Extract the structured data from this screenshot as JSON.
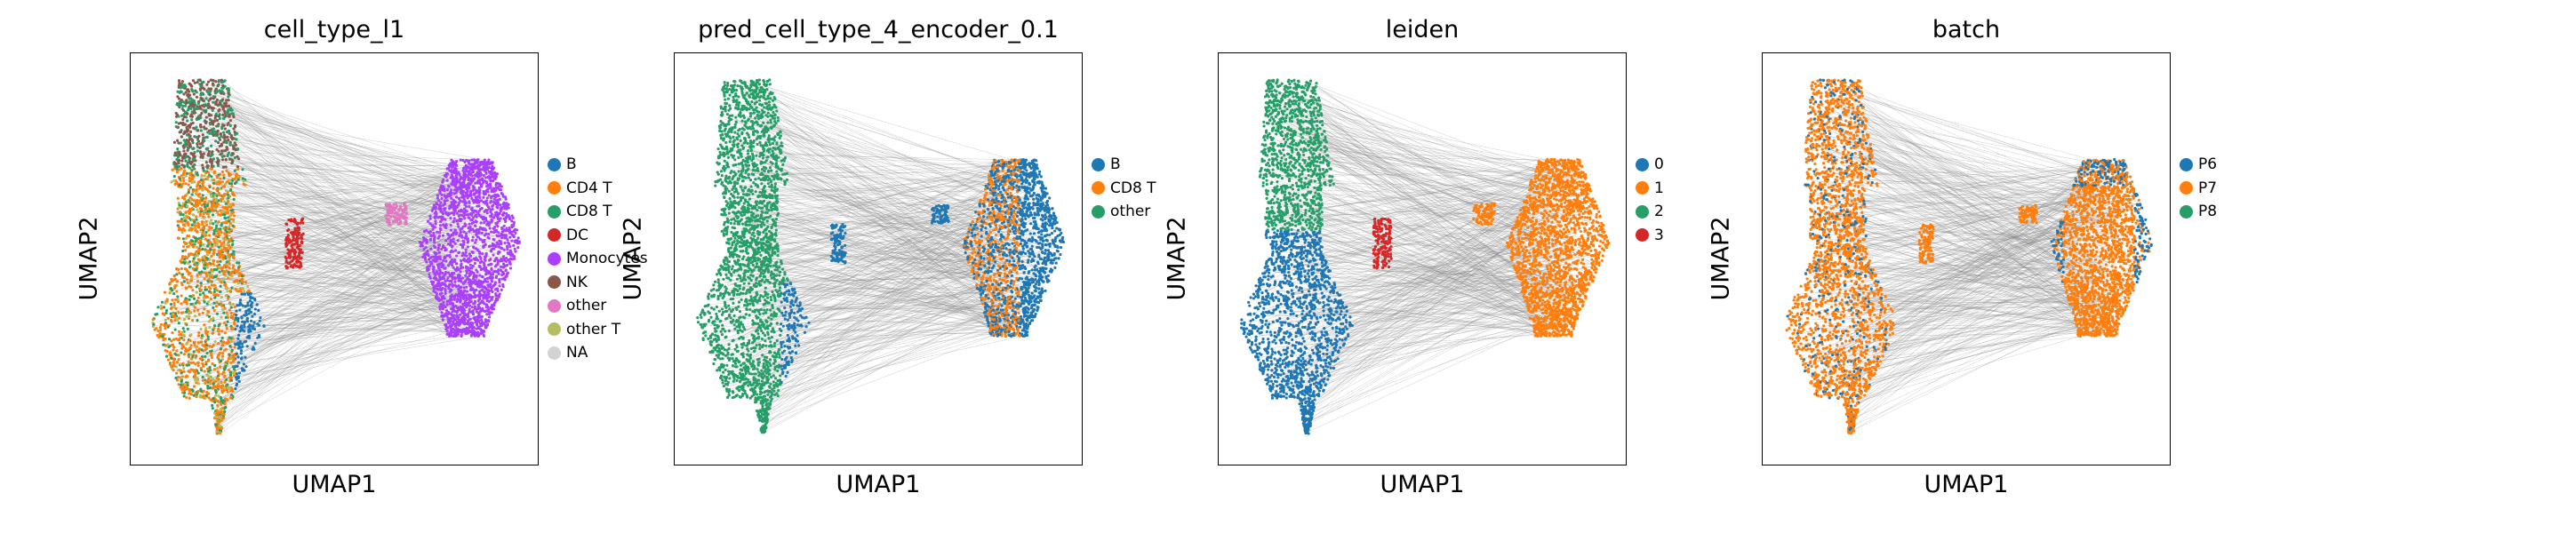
{
  "figure": {
    "panels": [
      {
        "title": "cell_type_l1",
        "xlabel": "UMAP1",
        "ylabel": "UMAP2",
        "legend": [
          {
            "label": "B",
            "color": "#1f77b4"
          },
          {
            "label": "CD4 T",
            "color": "#ff7f0e"
          },
          {
            "label": "CD8 T",
            "color": "#279e68"
          },
          {
            "label": "DC",
            "color": "#d62728"
          },
          {
            "label": "Monocytes",
            "color": "#aa40fc"
          },
          {
            "label": "NK",
            "color": "#8c564b"
          },
          {
            "label": "other",
            "color": "#e377c2"
          },
          {
            "label": "other T",
            "color": "#b5bd61"
          },
          {
            "label": "NA",
            "color": "#d3d3d3"
          }
        ]
      },
      {
        "title": "pred_cell_type_4_encoder_0.1",
        "xlabel": "UMAP1",
        "ylabel": "UMAP2",
        "legend": [
          {
            "label": "B",
            "color": "#1f77b4"
          },
          {
            "label": "CD8 T",
            "color": "#ff7f0e"
          },
          {
            "label": "other",
            "color": "#279e68"
          }
        ]
      },
      {
        "title": "leiden",
        "xlabel": "UMAP1",
        "ylabel": "UMAP2",
        "legend": [
          {
            "label": "0",
            "color": "#1f77b4"
          },
          {
            "label": "1",
            "color": "#ff7f0e"
          },
          {
            "label": "2",
            "color": "#279e68"
          },
          {
            "label": "3",
            "color": "#d62728"
          }
        ]
      },
      {
        "title": "batch",
        "xlabel": "UMAP1",
        "ylabel": "UMAP2",
        "legend": [
          {
            "label": "P6",
            "color": "#1f77b4"
          },
          {
            "label": "P7",
            "color": "#ff7f0e"
          },
          {
            "label": "P8",
            "color": "#279e68"
          }
        ]
      }
    ]
  },
  "chart_data": [
    {
      "type": "scatter",
      "title": "cell_type_l1",
      "xlabel": "UMAP1",
      "ylabel": "UMAP2",
      "ticks": "none",
      "legend_position": "right",
      "series": [
        {
          "name": "B"
        },
        {
          "name": "CD4 T"
        },
        {
          "name": "CD8 T"
        },
        {
          "name": "DC"
        },
        {
          "name": "Monocytes"
        },
        {
          "name": "NK"
        },
        {
          "name": "other"
        },
        {
          "name": "other T"
        },
        {
          "name": "NA"
        }
      ]
    },
    {
      "type": "scatter",
      "title": "pred_cell_type_4_encoder_0.1",
      "xlabel": "UMAP1",
      "ylabel": "UMAP2",
      "ticks": "none",
      "legend_position": "right",
      "series": [
        {
          "name": "B"
        },
        {
          "name": "CD8 T"
        },
        {
          "name": "other"
        }
      ]
    },
    {
      "type": "scatter",
      "title": "leiden",
      "xlabel": "UMAP1",
      "ylabel": "UMAP2",
      "ticks": "none",
      "legend_position": "right",
      "series": [
        {
          "name": "0"
        },
        {
          "name": "1"
        },
        {
          "name": "2"
        },
        {
          "name": "3"
        }
      ]
    },
    {
      "type": "scatter",
      "title": "batch",
      "xlabel": "UMAP1",
      "ylabel": "UMAP2",
      "ticks": "none",
      "legend_position": "right",
      "series": [
        {
          "name": "P6"
        },
        {
          "name": "P7"
        },
        {
          "name": "P8"
        }
      ]
    }
  ]
}
